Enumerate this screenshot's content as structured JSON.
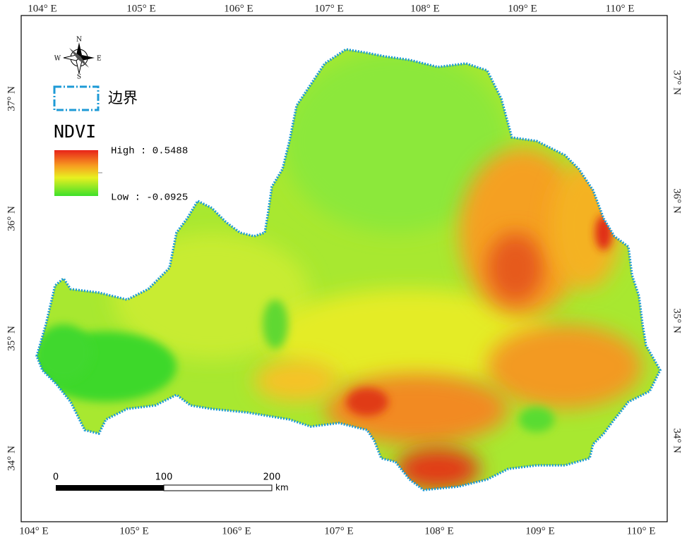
{
  "axes": {
    "top": [
      "104° E",
      "105° E",
      "106° E",
      "107° E",
      "108° E",
      "109° E",
      "110° E"
    ],
    "bottom": [
      "104° E",
      "105° E",
      "106° E",
      "107° E",
      "108° E",
      "109° E",
      "110° E"
    ],
    "left": [
      "37° N",
      "36° N",
      "35° N",
      "34° N"
    ],
    "right": [
      "37° N",
      "36° N",
      "35° N",
      "34° N"
    ]
  },
  "legend": {
    "compass": {
      "n": "N",
      "s": "S",
      "e": "E",
      "w": "W"
    },
    "boundary": "边界",
    "ndvi_title": "NDVI",
    "high": "High : 0.5488",
    "low": "Low : -0.0925"
  },
  "scale_bar": {
    "labels": [
      "0",
      "100",
      "200"
    ],
    "unit": "km"
  }
}
